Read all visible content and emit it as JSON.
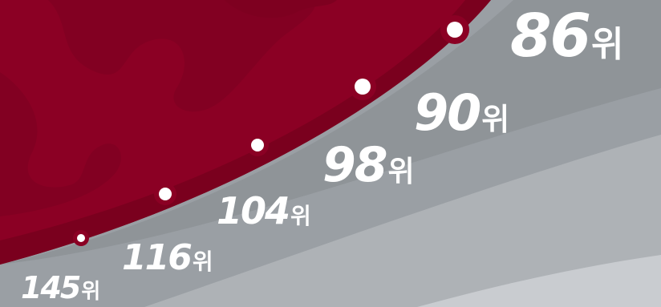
{
  "ranks": [
    {
      "num": "145",
      "unit": "위"
    },
    {
      "num": "116",
      "unit": "위"
    },
    {
      "num": "104",
      "unit": "위"
    },
    {
      "num": "98",
      "unit": "위"
    },
    {
      "num": "90",
      "unit": "위"
    },
    {
      "num": "86",
      "unit": "위"
    }
  ],
  "colors": {
    "crimson": "#8b0024",
    "crimson_dark": "#76001d",
    "gray_band": "#8e9397",
    "gray_light": "#b4b8bc",
    "gray_lighter": "#cfd2d5",
    "white": "#ffffff"
  }
}
